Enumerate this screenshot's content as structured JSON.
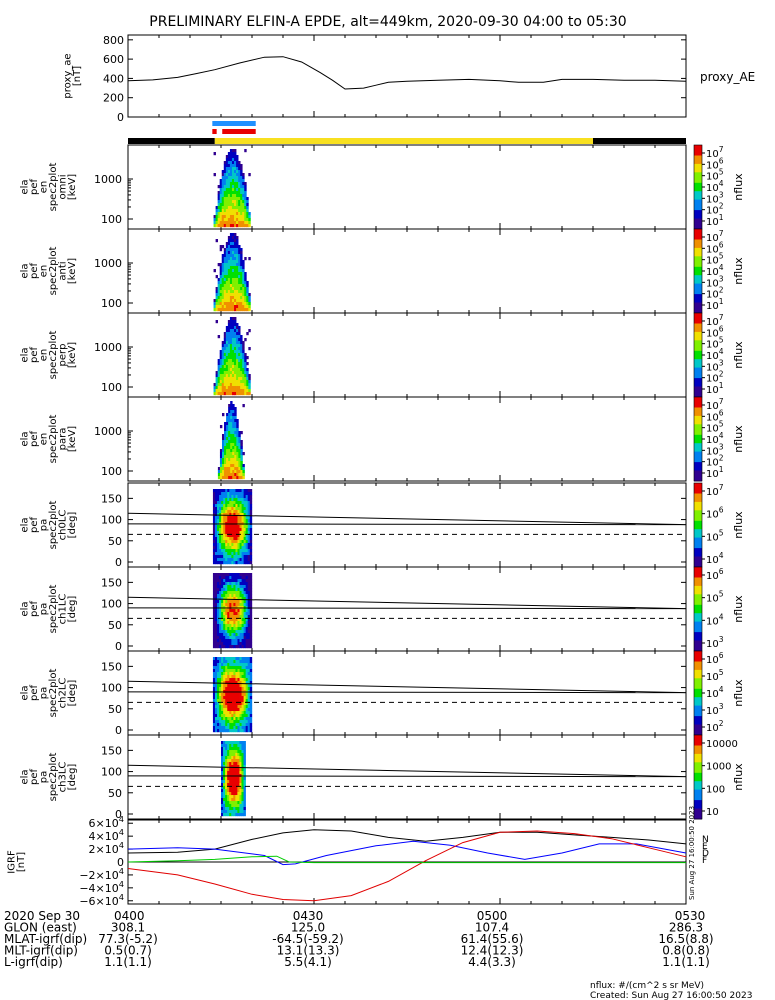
{
  "title": "PRELIMINARY ELFIN-A EPDE, alt=449km, 2020-09-30 04:00 to 05:30",
  "colors": {
    "spec_colors": [
      "#e80000",
      "#f09000",
      "#f0e000",
      "#80f000",
      "#00e000",
      "#00c8c8",
      "#0080f0",
      "#0000c0",
      "#300090"
    ],
    "bar_black": "#000000",
    "bar_yellow": "#f8e020",
    "marker_blue": "#1e90ff",
    "marker_red": "#e80000",
    "geo_black": "#000000",
    "geo_blue": "#0000ff",
    "geo_red": "#e00000",
    "geo_green": "#00cc00"
  },
  "chart_data": {
    "type": "line",
    "time_range": [
      "04:00",
      "05:30"
    ],
    "x_ticks": [
      "0400",
      "0430",
      "0500",
      "0530"
    ],
    "ae": {
      "ylabel": "proxy_ae\n[nT]",
      "series_label": "proxy_AE",
      "yticks": [
        "800",
        "600",
        "400",
        "200",
        "0"
      ],
      "ylim": [
        0,
        850
      ],
      "t": [
        0,
        4,
        8,
        11,
        14,
        18,
        22,
        25,
        28,
        31,
        33,
        35,
        38,
        40,
        42,
        45,
        50,
        55,
        60,
        63,
        67,
        70,
        75,
        80,
        85,
        90
      ],
      "v": [
        375,
        385,
        410,
        450,
        490,
        560,
        620,
        625,
        570,
        460,
        380,
        290,
        300,
        330,
        360,
        370,
        380,
        390,
        375,
        360,
        360,
        390,
        390,
        380,
        380,
        370
      ]
    },
    "orbit_bar": [
      {
        "start": 0,
        "end": 14,
        "color": "black"
      },
      {
        "start": 14,
        "end": 75,
        "color": "yellow"
      },
      {
        "start": 75,
        "end": 90,
        "color": "black"
      }
    ],
    "science_markers": [
      {
        "start": 13.6,
        "end": 20.6,
        "color": "blue"
      },
      {
        "start": 13.6,
        "end": 14.3,
        "color": "red"
      },
      {
        "start": 15.2,
        "end": 20.6,
        "color": "red"
      }
    ],
    "energy_panels": [
      {
        "ylabel": [
          "ela",
          "pef",
          "en",
          "spec2plot",
          "omni",
          "[keV]"
        ],
        "yticks": [
          "1000",
          "100"
        ],
        "cbar_label": "nflux",
        "cbar_ticks": [
          "10^7",
          "10^6",
          "10^5",
          "10^4",
          "10^3",
          "10^2",
          "10^1"
        ]
      },
      {
        "ylabel": [
          "ela",
          "pef",
          "en",
          "spec2plot",
          "anti",
          "[keV]"
        ],
        "yticks": [
          "1000",
          "100"
        ],
        "cbar_label": "nflux",
        "cbar_ticks": [
          "10^7",
          "10^6",
          "10^5",
          "10^4",
          "10^3",
          "10^2",
          "10^1"
        ]
      },
      {
        "ylabel": [
          "ela",
          "pef",
          "en",
          "spec2plot",
          "perp",
          "[keV]"
        ],
        "yticks": [
          "1000",
          "100"
        ],
        "cbar_label": "nflux",
        "cbar_ticks": [
          "10^7",
          "10^6",
          "10^5",
          "10^4",
          "10^3",
          "10^2",
          "10^1"
        ]
      },
      {
        "ylabel": [
          "ela",
          "pef",
          "en",
          "spec2plot",
          "para",
          "[keV]"
        ],
        "yticks": [
          "1000",
          "100"
        ],
        "cbar_label": "nflux",
        "cbar_ticks": [
          "10^7",
          "10^6",
          "10^5",
          "10^4",
          "10^3",
          "10^2",
          "10^1"
        ]
      }
    ],
    "pa_panels": [
      {
        "ylabel": [
          "ela",
          "pef",
          "pa",
          "spec2plot",
          "ch0LC",
          "[deg]"
        ],
        "yticks": [
          "150",
          "100",
          "50",
          "0"
        ],
        "cbar_label": "nflux",
        "cbar_ticks": [
          "10^7",
          "10^6",
          "10^5",
          "10^4"
        ]
      },
      {
        "ylabel": [
          "ela",
          "pef",
          "pa",
          "spec2plot",
          "ch1LC",
          "[deg]"
        ],
        "yticks": [
          "150",
          "100",
          "50",
          "0"
        ],
        "cbar_label": "nflux",
        "cbar_ticks": [
          "10^6",
          "10^5",
          "10^4",
          "10^3"
        ]
      },
      {
        "ylabel": [
          "ela",
          "pef",
          "pa",
          "spec2plot",
          "ch2LC",
          "[deg]"
        ],
        "yticks": [
          "150",
          "100",
          "50",
          "0"
        ],
        "cbar_label": "nflux",
        "cbar_ticks": [
          "10^6",
          "10^5",
          "10^4",
          "10^3",
          "10^2"
        ]
      },
      {
        "ylabel": [
          "ela",
          "pef",
          "pa",
          "spec2plot",
          "ch3LC",
          "[deg]"
        ],
        "yticks": [
          "150",
          "100",
          "50",
          "0"
        ],
        "cbar_label": "nflux",
        "cbar_ticks": [
          "10000",
          "1000",
          "100",
          "10"
        ]
      }
    ],
    "pa_lines": {
      "upper": [
        115,
        88
      ],
      "middle": [
        90,
        88
      ],
      "dashed": [
        65,
        65
      ]
    },
    "geo": {
      "ylabel": "IGRF\n[nT]",
      "yticks": [
        "6×10^4",
        "4×10^4",
        "2×10^4",
        "0",
        "−2×10^4",
        "−4×10^4",
        "−6×10^4"
      ],
      "yrange": [
        -65000,
        65000
      ],
      "legend": [
        "N",
        "E",
        "D",
        "F"
      ],
      "stamp": "Sun Aug 27 16:00:50 2023",
      "series": [
        {
          "name": "black",
          "t": [
            0,
            8,
            14,
            20,
            25,
            30,
            36,
            42,
            48,
            54,
            60,
            66,
            72,
            78,
            84,
            90
          ],
          "v": [
            14000,
            15000,
            20000,
            35000,
            45000,
            50000,
            48000,
            38000,
            32000,
            38000,
            46000,
            46000,
            42000,
            38000,
            34000,
            28000
          ]
        },
        {
          "name": "blue",
          "t": [
            0,
            8,
            14,
            22,
            25,
            27,
            32,
            40,
            46,
            52,
            58,
            64,
            70,
            76,
            82,
            90
          ],
          "v": [
            20000,
            22000,
            20000,
            10000,
            -4000,
            -3000,
            10000,
            25000,
            32000,
            26000,
            14000,
            4000,
            14000,
            28000,
            28000,
            14000
          ]
        },
        {
          "name": "red",
          "t": [
            0,
            8,
            14,
            20,
            25,
            30,
            36,
            42,
            48,
            54,
            60,
            66,
            72,
            78,
            84,
            90
          ],
          "v": [
            -10000,
            -20000,
            -34000,
            -50000,
            -58000,
            -60000,
            -52000,
            -30000,
            2000,
            30000,
            46000,
            48000,
            44000,
            36000,
            22000,
            8000
          ]
        },
        {
          "name": "green",
          "t": [
            0,
            8,
            14,
            20,
            24,
            26,
            30,
            40,
            50,
            60,
            70,
            80,
            90
          ],
          "v": [
            0,
            2000,
            4000,
            8000,
            9000,
            0,
            -1000,
            -1000,
            -1000,
            -1000,
            -1000,
            -1000,
            -1000
          ]
        }
      ]
    },
    "table": {
      "rows": [
        [
          "2020 Sep 30",
          "0400",
          "0430",
          "0500",
          "0530"
        ],
        [
          "GLON (east)",
          "308.1",
          "125.0",
          "107.4",
          "286.3"
        ],
        [
          "MLAT-igrf(dip)",
          "77.3(-5.2)",
          "-64.5(-59.2)",
          "61.4(55.6)",
          "16.5(8.8)"
        ],
        [
          "MLT-igrf(dip)",
          "0.5(0.7)",
          "13.1(13.3)",
          "12.4(12.3)",
          "0.8(0.8)"
        ],
        [
          "L-igrf(dip)",
          "1.1(1.1)",
          "5.5(4.1)",
          "4.4(3.3)",
          "1.1(1.1)"
        ]
      ]
    },
    "footer": [
      "nflux: #/(cm^2 s sr MeV)",
      "Created: Sun Aug 27 16:00:50 2023"
    ]
  }
}
